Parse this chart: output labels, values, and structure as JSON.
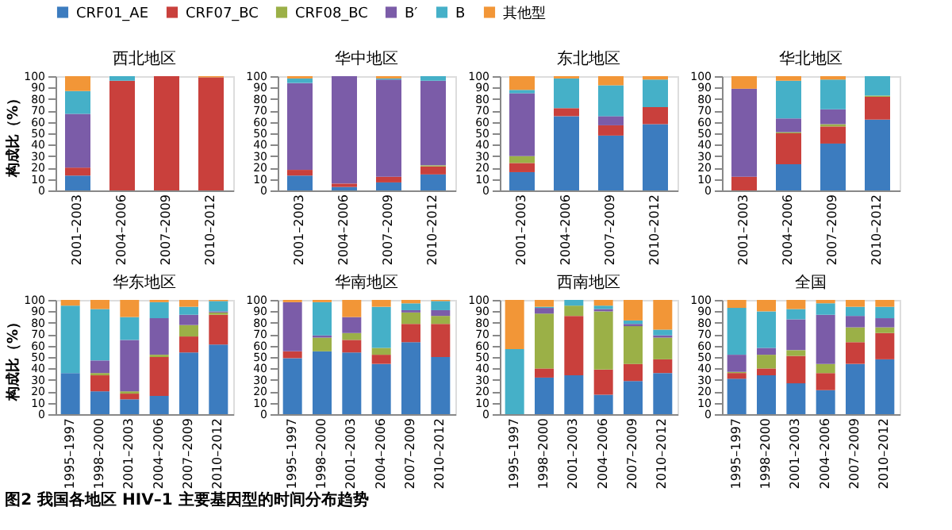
{
  "chart_data": [
    {
      "type": "bar",
      "stacked": true,
      "title": "西北地区",
      "ylabel": "构成比（%）",
      "legend": "top",
      "annotations": [
        "图2  我国各地区 HIV–1 主要基因型的时间分布趋势"
      ],
      "categories": [
        "2001–2003",
        "2004–2006",
        "2007–2009",
        "2010–2012"
      ],
      "ylim": [
        0,
        100
      ],
      "yticks": [
        0,
        10,
        20,
        30,
        40,
        50,
        60,
        70,
        80,
        90,
        100
      ],
      "series": [
        {
          "name": "CRF01_AE",
          "color": "#3c7cbf",
          "values": [
            13,
            0,
            0,
            0
          ]
        },
        {
          "name": "CRF07_BC",
          "color": "#c9403c",
          "values": [
            7,
            96,
            100,
            99
          ]
        },
        {
          "name": "CRF08_BC",
          "color": "#9bb047",
          "values": [
            0,
            0,
            0,
            0
          ]
        },
        {
          "name": "B′",
          "color": "#7b5ca8",
          "values": [
            47,
            0,
            0,
            0
          ]
        },
        {
          "name": "B",
          "color": "#45b0c8",
          "values": [
            20,
            4,
            0,
            0
          ]
        },
        {
          "name": "其他型",
          "color": "#f29637",
          "values": [
            13,
            0,
            0,
            1
          ]
        }
      ]
    },
    {
      "type": "bar",
      "stacked": true,
      "title": "华中地区",
      "categories": [
        "2001–2003",
        "2004–2006",
        "2007–2009",
        "2010–2012"
      ],
      "ylim": [
        0,
        100
      ],
      "yticks": [
        0,
        10,
        20,
        30,
        40,
        50,
        60,
        70,
        80,
        90,
        100
      ],
      "series": [
        {
          "color": "#3c7cbf",
          "values": [
            13,
            3,
            7,
            14
          ]
        },
        {
          "color": "#c9403c",
          "values": [
            5,
            3,
            5,
            7
          ]
        },
        {
          "color": "#9bb047",
          "values": [
            0,
            0,
            0,
            1
          ]
        },
        {
          "color": "#7b5ca8",
          "values": [
            76,
            94,
            85,
            74
          ]
        },
        {
          "color": "#45b0c8",
          "values": [
            4,
            0,
            1,
            4
          ]
        },
        {
          "color": "#f29637",
          "values": [
            2,
            0,
            2,
            0
          ]
        }
      ]
    },
    {
      "type": "bar",
      "stacked": true,
      "title": "东北地区",
      "categories": [
        "2001–2003",
        "2004–2006",
        "2007–2009",
        "2010–2012"
      ],
      "ylim": [
        0,
        100
      ],
      "yticks": [
        0,
        10,
        20,
        30,
        40,
        50,
        60,
        70,
        80,
        90,
        100
      ],
      "series": [
        {
          "color": "#3c7cbf",
          "values": [
            16,
            65,
            48,
            58
          ]
        },
        {
          "color": "#c9403c",
          "values": [
            8,
            7,
            9,
            15
          ]
        },
        {
          "color": "#9bb047",
          "values": [
            6,
            0,
            0,
            0
          ]
        },
        {
          "color": "#7b5ca8",
          "values": [
            55,
            0,
            8,
            0
          ]
        },
        {
          "color": "#45b0c8",
          "values": [
            3,
            26,
            27,
            24
          ]
        },
        {
          "color": "#f29637",
          "values": [
            12,
            2,
            8,
            3
          ]
        }
      ]
    },
    {
      "type": "bar",
      "stacked": true,
      "title": "华北地区",
      "categories": [
        "2001–2003",
        "2004–2006",
        "2007–2009",
        "2010–2012"
      ],
      "ylim": [
        0,
        100
      ],
      "yticks": [
        0,
        10,
        20,
        30,
        40,
        50,
        60,
        70,
        80,
        90,
        100
      ],
      "series": [
        {
          "color": "#3c7cbf",
          "values": [
            0,
            23,
            41,
            62
          ]
        },
        {
          "color": "#c9403c",
          "values": [
            12,
            27,
            15,
            20
          ]
        },
        {
          "color": "#9bb047",
          "values": [
            0,
            1,
            2,
            1
          ]
        },
        {
          "color": "#7b5ca8",
          "values": [
            77,
            12,
            13,
            0
          ]
        },
        {
          "color": "#45b0c8",
          "values": [
            0,
            33,
            26,
            17
          ]
        },
        {
          "color": "#f29637",
          "values": [
            11,
            4,
            3,
            0
          ]
        }
      ]
    },
    {
      "type": "bar",
      "stacked": true,
      "title": "华东地区",
      "ylabel": "构成比（%）",
      "categories": [
        "1995–1997",
        "1998–2000",
        "2001–2003",
        "2004–2006",
        "2007–2009",
        "2010–2012"
      ],
      "ylim": [
        0,
        100
      ],
      "yticks": [
        0,
        10,
        20,
        30,
        40,
        50,
        60,
        70,
        80,
        90,
        100
      ],
      "series": [
        {
          "color": "#3c7cbf",
          "values": [
            36,
            20,
            13,
            16,
            54,
            61
          ]
        },
        {
          "color": "#c9403c",
          "values": [
            0,
            14,
            5,
            34,
            14,
            26
          ]
        },
        {
          "color": "#9bb047",
          "values": [
            0,
            2,
            2,
            2,
            10,
            2
          ]
        },
        {
          "color": "#7b5ca8",
          "values": [
            0,
            11,
            45,
            32,
            9,
            1
          ]
        },
        {
          "color": "#45b0c8",
          "values": [
            59,
            45,
            20,
            14,
            7,
            9
          ]
        },
        {
          "color": "#f29637",
          "values": [
            5,
            8,
            15,
            2,
            6,
            1
          ]
        }
      ]
    },
    {
      "type": "bar",
      "stacked": true,
      "title": "华南地区",
      "categories": [
        "1995–1997",
        "1998–2000",
        "2001–2003",
        "2004–2006",
        "2007–2009",
        "2010–2012"
      ],
      "ylim": [
        0,
        100
      ],
      "yticks": [
        0,
        10,
        20,
        30,
        40,
        50,
        60,
        70,
        80,
        90,
        100
      ],
      "series": [
        {
          "color": "#3c7cbf",
          "values": [
            49,
            55,
            54,
            44,
            63,
            50
          ]
        },
        {
          "color": "#c9403c",
          "values": [
            6,
            0,
            11,
            8,
            16,
            29
          ]
        },
        {
          "color": "#9bb047",
          "values": [
            0,
            12,
            6,
            6,
            10,
            7
          ]
        },
        {
          "color": "#7b5ca8",
          "values": [
            43,
            2,
            14,
            0,
            2,
            5
          ]
        },
        {
          "color": "#45b0c8",
          "values": [
            0,
            29,
            0,
            36,
            6,
            8
          ]
        },
        {
          "color": "#f29637",
          "values": [
            2,
            2,
            15,
            6,
            3,
            1
          ]
        }
      ]
    },
    {
      "type": "bar",
      "stacked": true,
      "title": "西南地区",
      "categories": [
        "1995–1997",
        "1998–2000",
        "2001–2003",
        "2004–2006",
        "2007–2009",
        "2010–2012"
      ],
      "ylim": [
        0,
        100
      ],
      "yticks": [
        0,
        10,
        20,
        30,
        40,
        50,
        60,
        70,
        80,
        90,
        100
      ],
      "series": [
        {
          "color": "#3c7cbf",
          "values": [
            0,
            32,
            34,
            17,
            29,
            36
          ]
        },
        {
          "color": "#c9403c",
          "values": [
            0,
            8,
            52,
            22,
            15,
            12
          ]
        },
        {
          "color": "#9bb047",
          "values": [
            0,
            48,
            9,
            51,
            33,
            19
          ]
        },
        {
          "color": "#7b5ca8",
          "values": [
            0,
            5,
            0,
            2,
            2,
            2
          ]
        },
        {
          "color": "#45b0c8",
          "values": [
            57,
            1,
            5,
            3,
            3,
            5
          ]
        },
        {
          "color": "#f29637",
          "values": [
            43,
            6,
            0,
            5,
            18,
            26
          ]
        }
      ]
    },
    {
      "type": "bar",
      "stacked": true,
      "title": "全国",
      "categories": [
        "1995–1997",
        "1998–2000",
        "2001–2003",
        "2004–2006",
        "2007–2009",
        "2010–2012"
      ],
      "ylim": [
        0,
        100
      ],
      "yticks": [
        0,
        10,
        20,
        30,
        40,
        50,
        60,
        70,
        80,
        90,
        100
      ],
      "series": [
        {
          "color": "#3c7cbf",
          "values": [
            31,
            34,
            27,
            21,
            44,
            48
          ]
        },
        {
          "color": "#c9403c",
          "values": [
            5,
            6,
            24,
            15,
            19,
            23
          ]
        },
        {
          "color": "#9bb047",
          "values": [
            1,
            12,
            5,
            8,
            13,
            5
          ]
        },
        {
          "color": "#7b5ca8",
          "values": [
            15,
            6,
            27,
            43,
            10,
            8
          ]
        },
        {
          "color": "#45b0c8",
          "values": [
            41,
            32,
            9,
            10,
            8,
            10
          ]
        },
        {
          "color": "#f29637",
          "values": [
            7,
            10,
            8,
            3,
            6,
            6
          ]
        }
      ]
    }
  ]
}
